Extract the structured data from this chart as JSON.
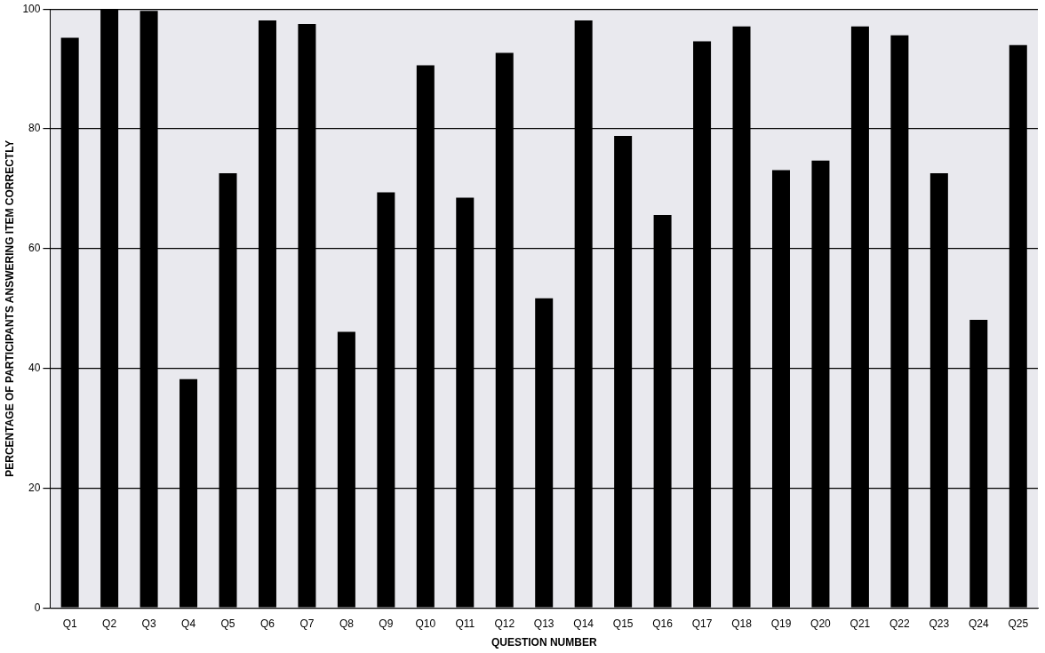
{
  "chart_data": {
    "type": "bar",
    "xlabel": "QUESTION NUMBER",
    "ylabel": "PERCENTAGE OF PARTICIPANTS ANSWERING ITEM CORRECTLY",
    "categories": [
      "Q1",
      "Q2",
      "Q3",
      "Q4",
      "Q5",
      "Q6",
      "Q7",
      "Q8",
      "Q9",
      "Q10",
      "Q11",
      "Q12",
      "Q13",
      "Q14",
      "Q15",
      "Q16",
      "Q17",
      "Q18",
      "Q19",
      "Q20",
      "Q21",
      "Q22",
      "Q23",
      "Q24",
      "Q25"
    ],
    "values": [
      95.2,
      100,
      99.7,
      38.2,
      72.6,
      98.1,
      97.5,
      46.1,
      69.4,
      90.6,
      68.5,
      92.7,
      51.7,
      98.1,
      78.8,
      65.6,
      94.6,
      97.1,
      73.1,
      74.7,
      97.1,
      95.6,
      72.6,
      48.1,
      94.0
    ],
    "color": "#000000",
    "ylim": [
      0,
      100
    ],
    "yticks": [
      0,
      20,
      40,
      60,
      80,
      100
    ],
    "grid": "y",
    "legend": false
  }
}
